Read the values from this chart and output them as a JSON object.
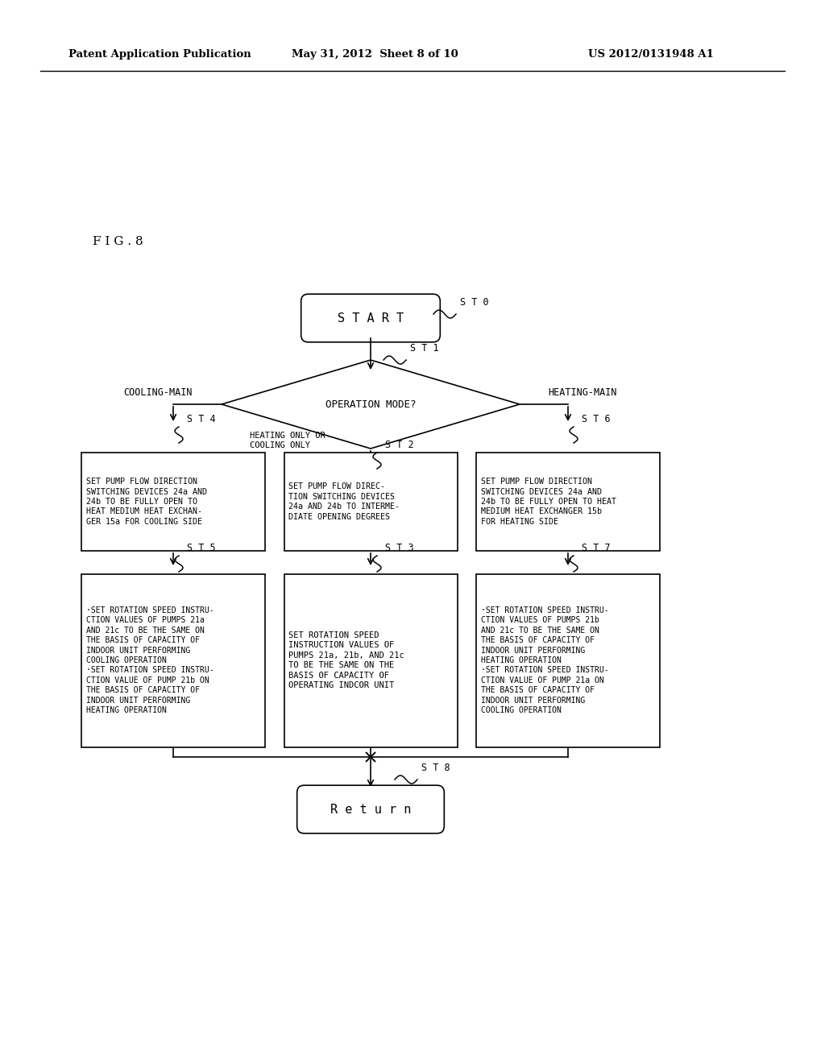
{
  "bg_color": "#ffffff",
  "header_left": "Patent Application Publication",
  "header_mid": "May 31, 2012  Sheet 8 of 10",
  "header_right": "US 2012/0131948 A1",
  "fig_label": "F I G . 8",
  "start_label": "S T 0",
  "start_text": "S T A R T",
  "decision_label": "S T 1",
  "decision_text": "OPERATION MODE?",
  "cooling_main": "COOLING-MAIN",
  "heating_main": "HEATING-MAIN",
  "heating_cooling_only": "HEATING ONLY OR\nCOOLING ONLY",
  "st2_label": "S T 2",
  "st2_text": "SET PUMP FLOW DIREC-\nTION SWITCHING DEVICES\n24a AND 24b TO INTERME-\nDIATE OPENING DEGREES",
  "st3_label": "S T 3",
  "st3_text": "SET ROTATION SPEED\nINSTRUCTION VALUES OF\nPUMPS 21a, 21b, AND 21c\nTO BE THE SAME ON THE\nBASIS OF CAPACITY OF\nOPERATING INDCOR UNIT",
  "st4_label": "S T 4",
  "st4_text": "SET PUMP FLOW DIRECTION\nSWITCHING DEVICES 24a AND\n24b TO BE FULLY OPEN TO\nHEAT MEDIUM HEAT EXCHAN-\nGER 15a FOR COOLING SIDE",
  "st5_label": "S T 5",
  "st5_text": "·SET ROTATION SPEED INSTRU-\nCTION VALUES OF PUMPS 21a\nAND 21c TO BE THE SAME ON\nTHE BASIS OF CAPACITY OF\nINDOOR UNIT PERFORMING\nCOOLING OPERATION\n·SET ROTATION SPEED INSTRU-\nCTION VALUE OF PUMP 21b ON\nTHE BASIS OF CAPACITY OF\nINDOOR UNIT PERFORMING\nHEATING OPERATION",
  "st6_label": "S T 6",
  "st6_text": "SET PUMP FLOW DIRECTION\nSWITCHING DEVICES 24a AND\n24b TO BE FULLY OPEN TO HEAT\nMEDIUM HEAT EXCHANGER 15b\nFOR HEATING SIDE",
  "st7_label": "S T 7",
  "st7_text": "·SET ROTATION SPEED INSTRU-\nCTION VALUES OF PUMPS 21b\nAND 21c TO BE THE SAME ON\nTHE BASIS OF CAPACITY OF\nINDOOR UNIT PERFORMING\nHEATING OPERATION\n·SET ROTATION SPEED INSTRU-\nCTION VALUE OF PUMP 21a ON\nTHE BASIS OF CAPACITY OF\nINDOOR UNIT PERFORMING\nCOOLING OPERATION",
  "st8_label": "S T 8",
  "st8_text": "R e t u r n",
  "lw": 1.2
}
